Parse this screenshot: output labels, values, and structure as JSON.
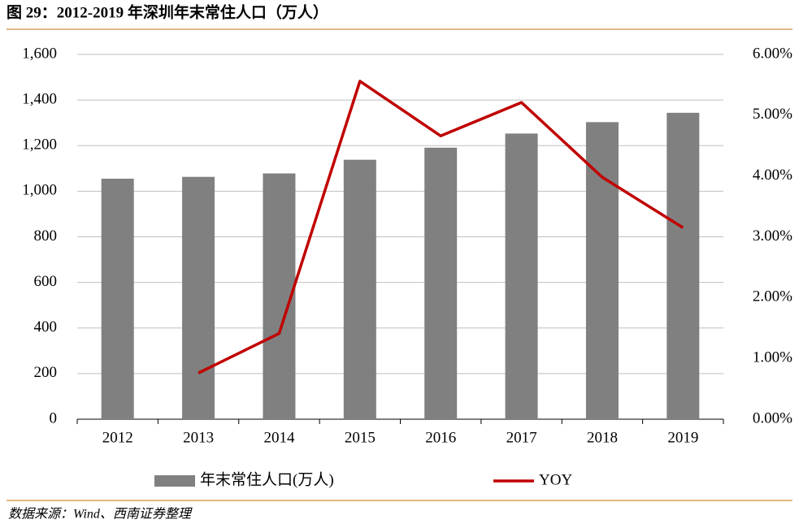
{
  "title": "图 29：2012-2019 年深圳年末常住人口（万人）",
  "source": "数据来源：Wind、西南证券整理",
  "chart_data": {
    "type": "bar-line",
    "categories": [
      "2012",
      "2013",
      "2014",
      "2015",
      "2016",
      "2017",
      "2018",
      "2019"
    ],
    "series": [
      {
        "name": "年末常住人口(万人)",
        "type": "bar",
        "color": "#808080",
        "values": [
          1055,
          1063,
          1078,
          1138,
          1191,
          1253,
          1303,
          1344
        ]
      },
      {
        "name": "YOY",
        "type": "line",
        "axis": "y2",
        "color": "#c00000",
        "values": [
          null,
          0.76,
          1.41,
          5.56,
          4.66,
          5.21,
          3.98,
          3.15
        ]
      }
    ],
    "ylim": [
      0,
      1600
    ],
    "yticks": [
      0,
      200,
      400,
      600,
      800,
      {
        "value": 1000,
        "label": "1,000"
      },
      {
        "value": 1200,
        "label": "1,200"
      },
      {
        "value": 1400,
        "label": "1,400"
      },
      {
        "value": 1600,
        "label": "1,600"
      }
    ],
    "y2lim": [
      0,
      6
    ],
    "y2ticks": [
      {
        "value": 0,
        "label": "0.00%"
      },
      {
        "value": 1,
        "label": "1.00%"
      },
      {
        "value": 2,
        "label": "2.00%"
      },
      {
        "value": 3,
        "label": "3.00%"
      },
      {
        "value": 4,
        "label": "4.00%"
      },
      {
        "value": 5,
        "label": "5.00%"
      },
      {
        "value": 6,
        "label": "6.00%"
      }
    ],
    "grid": true,
    "legend": "bottom"
  }
}
